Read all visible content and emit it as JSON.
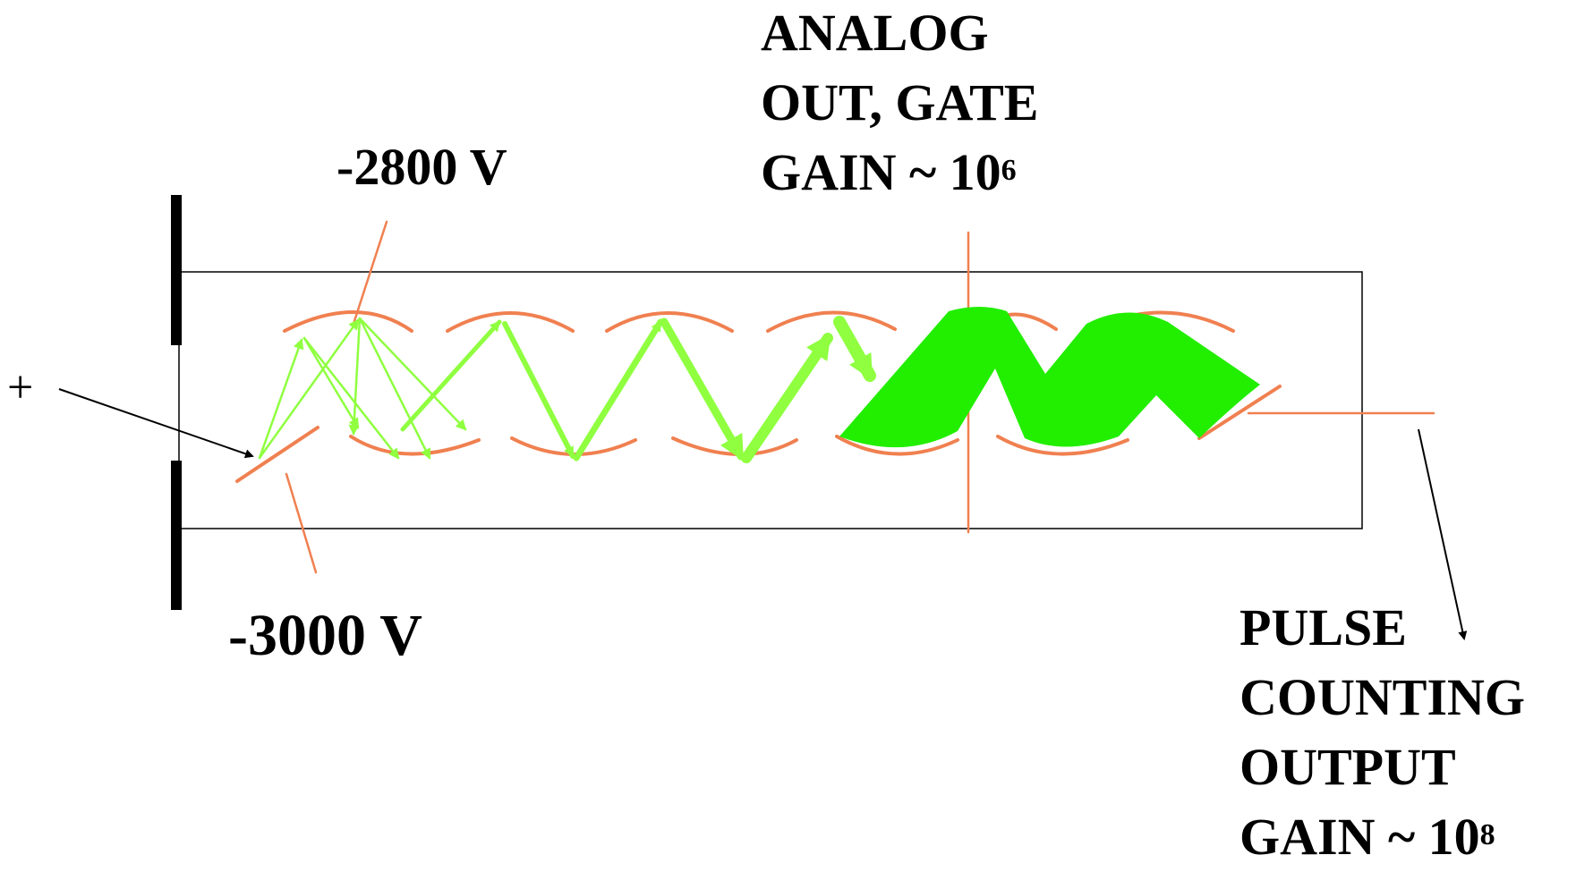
{
  "labels": {
    "anode_analog": {
      "line1": "ANALOG",
      "line2": "OUT,  GATE",
      "line3_base": "GAIN ~ 10",
      "line3_exp": "6"
    },
    "pulse_output": {
      "line1": "PULSE",
      "line2": "COUNTING",
      "line3": "OUTPUT",
      "line4_base": "GAIN ~ 10",
      "line4_exp": "8"
    },
    "dynode_voltage": "-2800 V",
    "cathode_voltage": "-3000 V",
    "incoming_particle": "+"
  },
  "colors": {
    "dynode": "#f08050",
    "electron_light": "#8fff40",
    "electron_bright": "#22ee00",
    "outline": "#000000"
  }
}
